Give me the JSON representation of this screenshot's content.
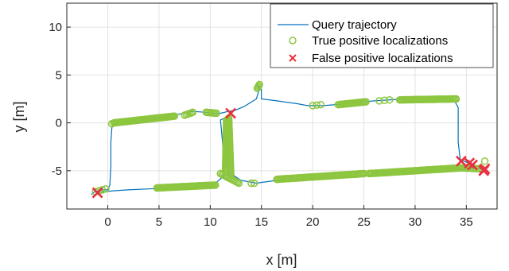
{
  "chart_data": {
    "type": "scatter",
    "title": "",
    "xlabel": "x [m]",
    "ylabel": "y [m]",
    "xlim": [
      -4,
      38
    ],
    "ylim": [
      -9,
      12.5
    ],
    "xticks": [
      0,
      5,
      10,
      15,
      20,
      25,
      30,
      35
    ],
    "yticks": [
      -5,
      0,
      5,
      10
    ],
    "grid": true,
    "legend_position": "top-right",
    "legend": [
      "Query trajectory",
      "True positive localizations",
      "False positive localizations"
    ],
    "colors": {
      "trajectory": "#0072BD",
      "true_positive": "#8DC63F",
      "false_positive": "#E8313F",
      "grid": "#e3e3e3",
      "axis": "#262626"
    },
    "series": [
      {
        "name": "Query trajectory",
        "style": "line",
        "points": [
          [
            -1.6,
            -7.5
          ],
          [
            -1.3,
            -7.2
          ],
          [
            -0.4,
            -7.0
          ],
          [
            0.0,
            -7.0
          ],
          [
            0.2,
            -6.5
          ],
          [
            0.3,
            -4.5
          ],
          [
            0.3,
            -2.0
          ],
          [
            0.4,
            -0.5
          ],
          [
            0.6,
            -0.1
          ],
          [
            2.0,
            0.3
          ],
          [
            4.5,
            0.6
          ],
          [
            6.5,
            0.8
          ],
          [
            7.8,
            1.1
          ],
          [
            8.3,
            1.2
          ],
          [
            9.5,
            1.1
          ],
          [
            10.3,
            1.0
          ],
          [
            11.0,
            1.0
          ],
          [
            11.8,
            1.2
          ],
          [
            12.4,
            1.3
          ],
          [
            13.3,
            1.7
          ],
          [
            14.5,
            2.5
          ],
          [
            14.7,
            3.2
          ],
          [
            14.7,
            3.9
          ],
          [
            15.0,
            3.5
          ],
          [
            15.0,
            2.5
          ],
          [
            16.5,
            2.3
          ],
          [
            18.5,
            2.0
          ],
          [
            19.5,
            1.8
          ],
          [
            21.0,
            1.8
          ],
          [
            23.5,
            2.0
          ],
          [
            26.0,
            2.3
          ],
          [
            29.0,
            2.5
          ],
          [
            32.5,
            2.6
          ],
          [
            33.8,
            2.4
          ],
          [
            34.2,
            1.6
          ],
          [
            34.2,
            0.0
          ],
          [
            34.2,
            -2.0
          ],
          [
            34.4,
            -3.8
          ],
          [
            35.2,
            -4.2
          ],
          [
            36.5,
            -4.7
          ],
          [
            36.8,
            -4.8
          ],
          [
            33.0,
            -4.8
          ],
          [
            30.0,
            -5.0
          ],
          [
            26.0,
            -5.4
          ],
          [
            22.0,
            -5.8
          ],
          [
            20.0,
            -5.9
          ],
          [
            16.5,
            -6.0
          ],
          [
            14.5,
            -6.3
          ],
          [
            13.0,
            -6.0
          ],
          [
            12.0,
            -5.3
          ],
          [
            11.6,
            -4.5
          ],
          [
            11.5,
            -3.0
          ],
          [
            11.5,
            -1.0
          ],
          [
            11.6,
            0.2
          ],
          [
            11.8,
            0.7
          ],
          [
            11.0,
            0.3
          ],
          [
            11.2,
            -2.0
          ],
          [
            11.3,
            -4.0
          ],
          [
            11.4,
            -5.5
          ],
          [
            10.5,
            -6.3
          ],
          [
            9.0,
            -6.6
          ],
          [
            6.5,
            -6.8
          ],
          [
            4.0,
            -6.9
          ],
          [
            2.0,
            -7.0
          ],
          [
            0.5,
            -7.1
          ],
          [
            -1.0,
            -7.3
          ]
        ]
      },
      {
        "name": "True positive localizations",
        "style": "circles",
        "segments": [
          {
            "from": [
              0.6,
              0.0
            ],
            "to": [
              6.5,
              0.7
            ],
            "n": 55
          },
          {
            "from": [
              7.5,
              0.8
            ],
            "to": [
              8.3,
              1.1
            ],
            "n": 6
          },
          {
            "from": [
              9.6,
              1.1
            ],
            "to": [
              10.6,
              1.0
            ],
            "n": 8
          },
          {
            "from": [
              11.6,
              0.3
            ],
            "to": [
              11.5,
              -5.0
            ],
            "n": 40
          },
          {
            "from": [
              11.8,
              0.5
            ],
            "to": [
              12.0,
              -5.4
            ],
            "n": 40
          },
          {
            "from": [
              11.0,
              -5.3
            ],
            "to": [
              12.8,
              -6.3
            ],
            "n": 14
          },
          {
            "from": [
              4.8,
              -6.8
            ],
            "to": [
              10.5,
              -6.5
            ],
            "n": 50
          },
          {
            "from": [
              14.6,
              3.6
            ],
            "to": [
              14.8,
              4.0
            ],
            "n": 4
          },
          {
            "from": [
              20.0,
              1.8
            ],
            "to": [
              20.8,
              1.9
            ],
            "n": 3
          },
          {
            "from": [
              22.5,
              1.9
            ],
            "to": [
              25.2,
              2.2
            ],
            "n": 22
          },
          {
            "from": [
              26.5,
              2.3
            ],
            "to": [
              27.5,
              2.4
            ],
            "n": 3
          },
          {
            "from": [
              28.5,
              2.4
            ],
            "to": [
              34.0,
              2.5
            ],
            "n": 45
          },
          {
            "from": [
              16.5,
              -5.9
            ],
            "to": [
              25.0,
              -5.3
            ],
            "n": 70
          },
          {
            "from": [
              25.5,
              -5.3
            ],
            "to": [
              34.5,
              -4.7
            ],
            "n": 70
          },
          {
            "from": [
              34.5,
              -4.7
            ],
            "to": [
              36.5,
              -4.8
            ],
            "n": 12
          },
          {
            "from": [
              36.8,
              -4.0
            ],
            "to": [
              36.8,
              -4.0
            ],
            "n": 1
          },
          {
            "from": [
              -1.2,
              -7.2
            ],
            "to": [
              -0.2,
              -6.9
            ],
            "n": 4
          },
          {
            "from": [
              14.0,
              -6.3
            ],
            "to": [
              14.3,
              -6.3
            ],
            "n": 2
          },
          {
            "from": [
              0.4,
              -0.1
            ],
            "to": [
              0.4,
              -0.1
            ],
            "n": 2
          }
        ]
      },
      {
        "name": "False positive localizations",
        "style": "crosses",
        "points": [
          [
            -1.0,
            -7.3
          ],
          [
            12.0,
            1.0
          ],
          [
            34.5,
            -4.0
          ],
          [
            35.3,
            -4.2
          ],
          [
            35.6,
            -4.4
          ],
          [
            36.8,
            -4.8
          ],
          [
            36.7,
            -5.0
          ]
        ]
      }
    ]
  }
}
